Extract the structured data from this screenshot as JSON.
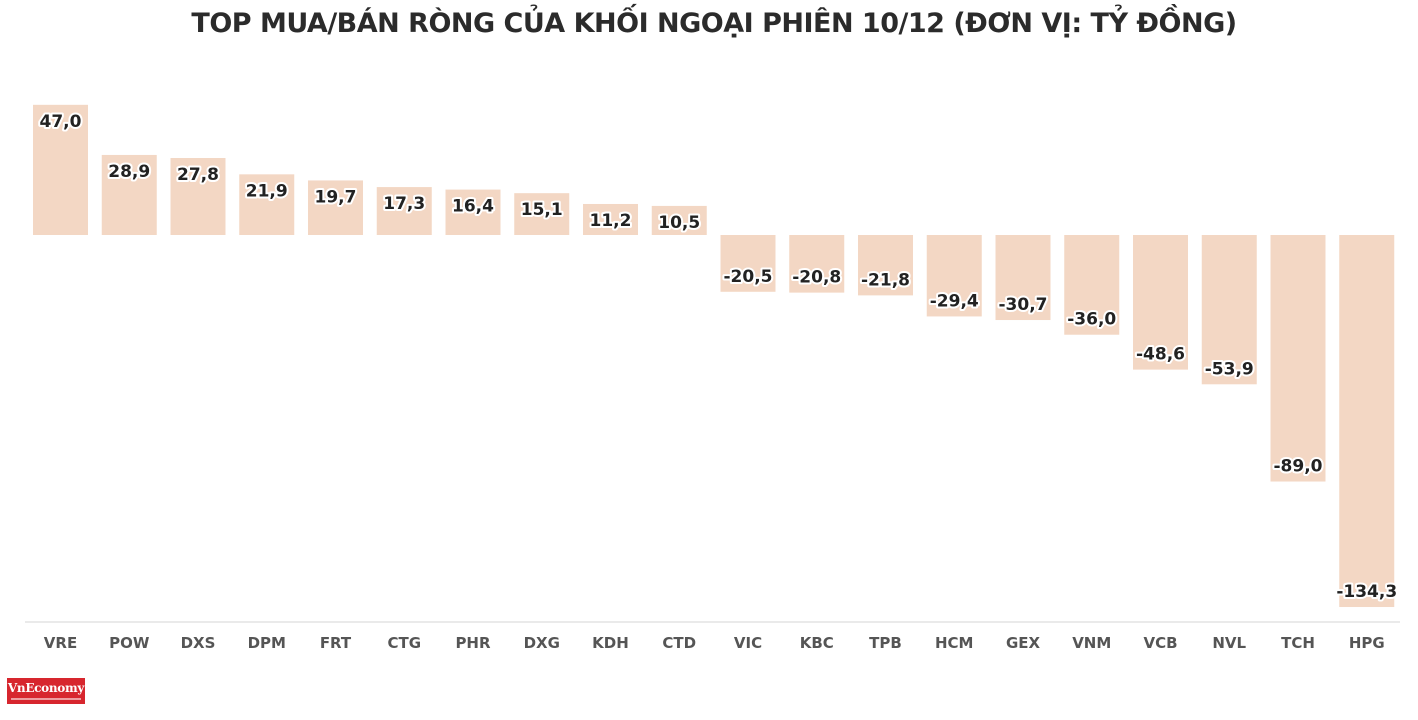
{
  "colors": {
    "bar": "#f3d7c4",
    "axis": "#d6d6d6",
    "title": "#2b2b2b",
    "label": "#222222",
    "tick": "#555555",
    "logo_bg": "#d7262e"
  },
  "logo": {
    "text": "VnEconomy"
  },
  "chart_data": {
    "type": "bar",
    "title": "TOP MUA/BÁN RÒNG CỦA KHỐI NGOẠI PHIÊN 10/12 (ĐƠN VỊ: TỶ ĐỒNG)",
    "xlabel": "",
    "ylabel": "",
    "categories": [
      "VRE",
      "POW",
      "DXS",
      "DPM",
      "FRT",
      "CTG",
      "PHR",
      "DXG",
      "KDH",
      "CTD",
      "VIC",
      "KBC",
      "TPB",
      "HCM",
      "GEX",
      "VNM",
      "VCB",
      "NVL",
      "TCH",
      "HPG"
    ],
    "values": [
      47.0,
      28.9,
      27.8,
      21.9,
      19.7,
      17.3,
      16.4,
      15.1,
      11.2,
      10.5,
      -20.5,
      -20.8,
      -21.8,
      -29.4,
      -30.7,
      -36.0,
      -48.6,
      -53.9,
      -89.0,
      -134.3
    ],
    "value_labels": [
      "47,0",
      "28,9",
      "27,8",
      "21,9",
      "19,7",
      "17,3",
      "16,4",
      "15,1",
      "11,2",
      "10,5",
      "-20,5",
      "-20,8",
      "-21,8",
      "-29,4",
      "-30,7",
      "-36,0",
      "-48,6",
      "-53,9",
      "-89,0",
      "-134,3"
    ],
    "ylim": [
      -134.3,
      47.0
    ],
    "grid": false,
    "legend": "none"
  }
}
